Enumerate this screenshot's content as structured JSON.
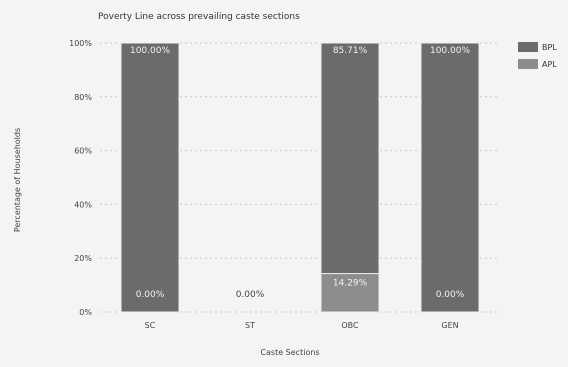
{
  "chart_data": {
    "type": "bar",
    "stacked": true,
    "title": "Poverty Line across prevailing caste sections",
    "xlabel": "Caste Sections",
    "ylabel": "Percentage of Households",
    "categories": [
      "SC",
      "ST",
      "OBC",
      "GEN"
    ],
    "ylim": [
      0,
      100
    ],
    "yticks": [
      "0%",
      "20%",
      "40%",
      "60%",
      "80%",
      "100%"
    ],
    "series": [
      {
        "name": "APL",
        "values": [
          0,
          0,
          14.29,
          0
        ],
        "color": "#8c8c8c"
      },
      {
        "name": "BPL",
        "values": [
          100,
          0,
          85.71,
          100
        ],
        "color": "#6b6b6b"
      }
    ],
    "bar_labels": {
      "top": [
        "100.00%",
        "",
        "85.71%",
        "100.00%"
      ],
      "bottom": [
        "0.00%",
        "0.00%",
        "14.29%",
        "0.00%"
      ]
    },
    "grid": true,
    "legend": "top-right",
    "legend_order": [
      "BPL",
      "APL"
    ]
  }
}
